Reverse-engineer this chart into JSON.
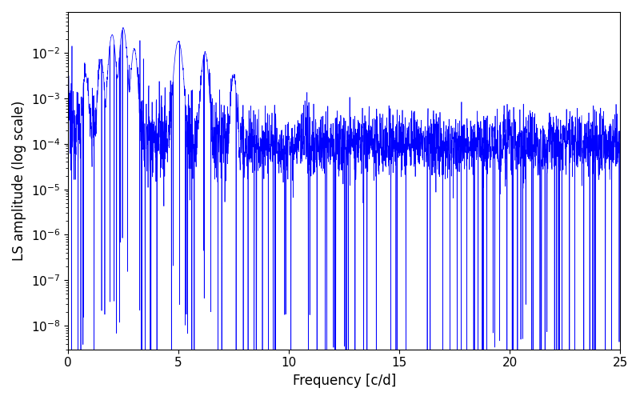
{
  "xlabel": "Frequency [c/d]",
  "ylabel": "LS amplitude (log scale)",
  "xlim": [
    0,
    25
  ],
  "ylim": [
    3e-09,
    0.08
  ],
  "line_color": "#0000ff",
  "line_width": 0.5,
  "background_color": "#ffffff",
  "seed": 12345,
  "n_points": 3000,
  "freq_max": 25.0,
  "base_amplitude": 0.0001,
  "log_noise_sigma_low": 1.2,
  "log_noise_sigma_high": 0.8,
  "freq_transition": 8.0,
  "peak_freqs": [
    0.8,
    1.5,
    2.0,
    2.5,
    3.0,
    5.0,
    6.2,
    7.5
  ],
  "peak_heights": [
    0.003,
    0.007,
    0.025,
    0.035,
    0.012,
    0.018,
    0.01,
    0.003
  ],
  "peak_widths": [
    0.08,
    0.08,
    0.1,
    0.1,
    0.09,
    0.12,
    0.1,
    0.08
  ],
  "deep_dip_freq": 20.5,
  "deep_dip_val": 5e-09,
  "xlabel_fontsize": 12,
  "ylabel_fontsize": 12,
  "tick_fontsize": 11,
  "figsize": [
    8.0,
    5.0
  ],
  "dpi": 100
}
